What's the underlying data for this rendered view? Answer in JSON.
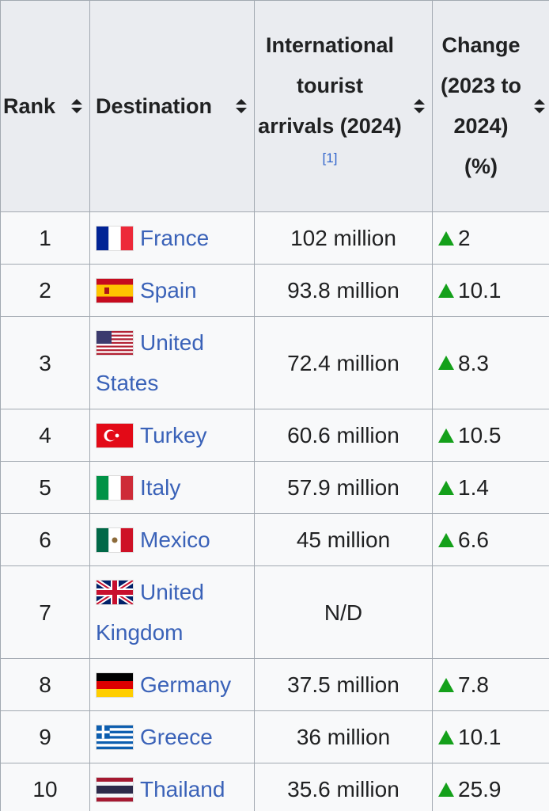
{
  "table": {
    "headers": [
      "Rank",
      "Destination",
      "International tourist arrivals (2024)",
      "Change (2023 to 2024) (%)"
    ],
    "reference": "[1]",
    "rows": [
      [
        "1",
        "France",
        "102 million",
        "2"
      ],
      [
        "2",
        "Spain",
        "93.8 million",
        "10.1"
      ],
      [
        "3",
        "United States",
        "72.4 million",
        "8.3"
      ],
      [
        "4",
        "Turkey",
        "60.6 million",
        "10.5"
      ],
      [
        "5",
        "Italy",
        "57.9 million",
        "1.4"
      ],
      [
        "6",
        "Mexico",
        "45 million",
        "6.6"
      ],
      [
        "7",
        "United Kingdom",
        "N/D",
        null
      ],
      [
        "8",
        "Germany",
        "37.5 million",
        "7.8"
      ],
      [
        "9",
        "Greece",
        "36 million",
        "10.1"
      ],
      [
        "10",
        "Thailand",
        "35.6 million",
        "25.9"
      ]
    ]
  }
}
